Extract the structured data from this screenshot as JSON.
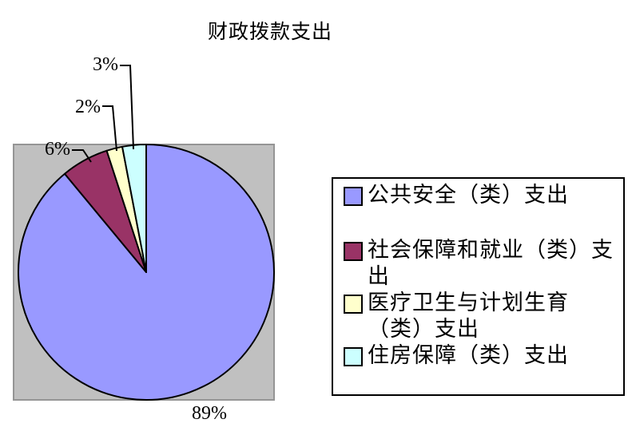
{
  "chart_data": {
    "type": "pie",
    "title": "财政拨款支出",
    "legend_position": "right",
    "plot_area_bg": "#C0C0C0",
    "pie_outline_color": "#000000",
    "start_angle_deg": -90,
    "direction": "clockwise",
    "slices": [
      {
        "name": "公共安全（类）支出",
        "value": 89,
        "pct_label": "89%",
        "color": "#9999FF",
        "legend_lines": [
          "公共安全（类）支出"
        ]
      },
      {
        "name": "社会保障和就业（类）支出",
        "value": 6,
        "pct_label": "6%",
        "color": "#993366",
        "legend_lines": [
          "社会保障和就业（类）支",
          "出"
        ]
      },
      {
        "name": "医疗卫生与计划生育（类）支出",
        "value": 2,
        "pct_label": "2%",
        "color": "#FFFFCC",
        "legend_lines": [
          "医疗卫生与计划生育",
          "（类）支出"
        ]
      },
      {
        "name": "住房保障（类）支出",
        "value": 3,
        "pct_label": "3%",
        "color": "#CCFFFF",
        "legend_lines": [
          "住房保障（类）支出"
        ]
      }
    ]
  }
}
